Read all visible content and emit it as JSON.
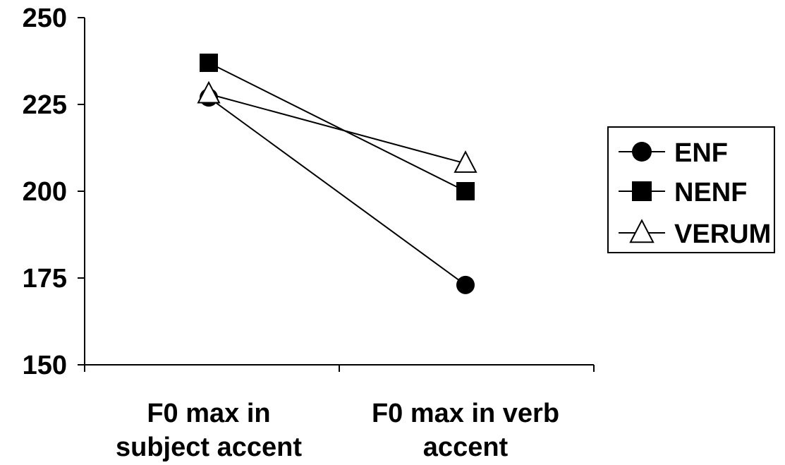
{
  "chart_data": {
    "type": "line",
    "title": "",
    "xlabel": "",
    "ylabel": "",
    "categories": [
      [
        "F0 max in",
        "subject accent"
      ],
      [
        "F0 max in verb",
        "accent"
      ]
    ],
    "ylim": [
      150,
      250
    ],
    "yticks": [
      150,
      175,
      200,
      225,
      250
    ],
    "grid": false,
    "legend_position": "right",
    "series": [
      {
        "name": "ENF",
        "marker": "circle",
        "values": [
          227,
          173
        ]
      },
      {
        "name": "NENF",
        "marker": "square",
        "values": [
          237,
          200
        ]
      },
      {
        "name": "VERUM",
        "marker": "triangle",
        "values": [
          228,
          208
        ]
      }
    ]
  }
}
